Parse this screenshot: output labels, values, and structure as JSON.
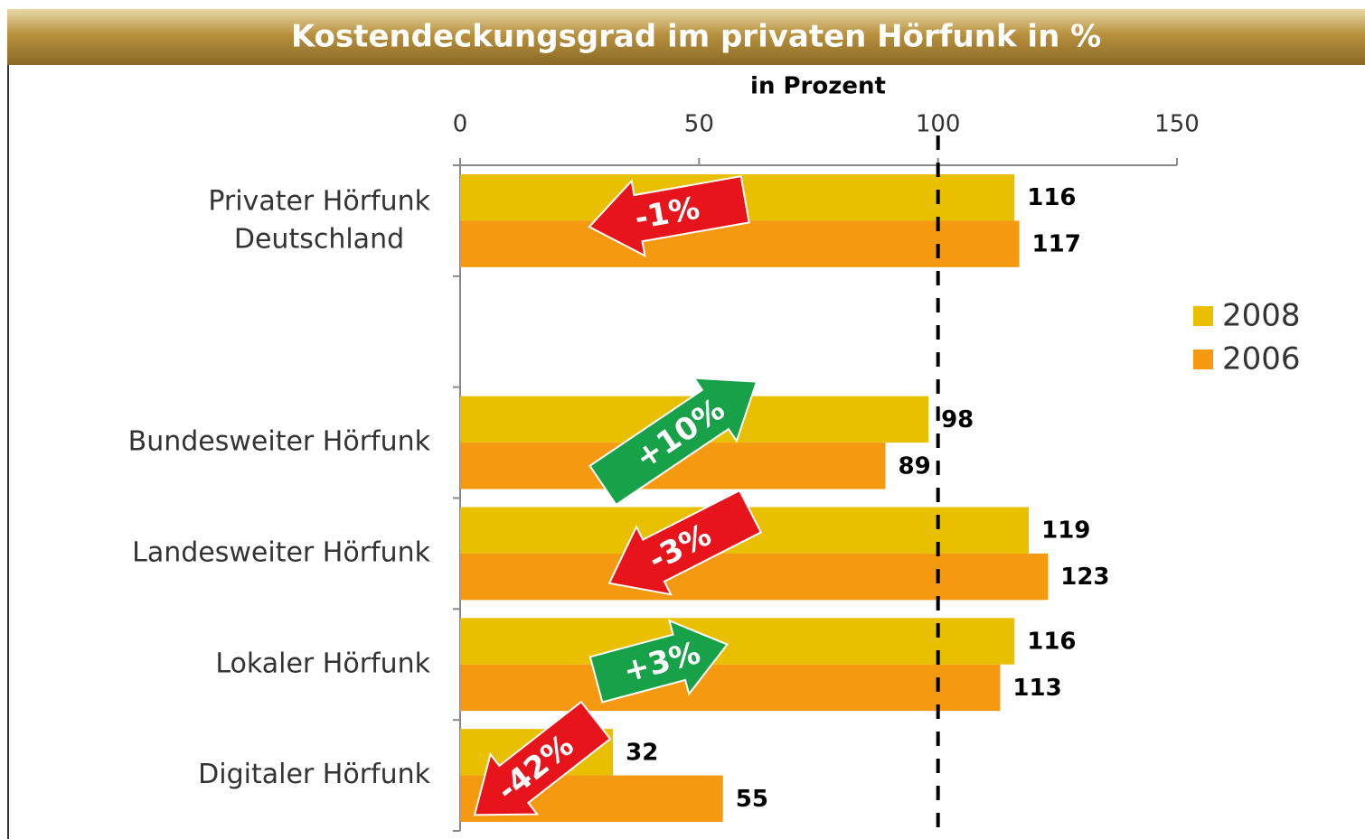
{
  "chart_data": {
    "type": "bar",
    "orientation": "horizontal",
    "title": "Kostendeckungsgrad im privaten Hörfunk in %",
    "x_label": "in Prozent",
    "categories": [
      "Privater Hörfunk Deutschland",
      null,
      "Bundesweiter Hörfunk",
      "Landesweiter Hörfunk",
      "Lokaler Hörfunk",
      "Digitaler Hörfunk"
    ],
    "series": [
      {
        "name": "2008",
        "color": "#e8c000",
        "values": [
          116,
          null,
          98,
          119,
          116,
          32
        ]
      },
      {
        "name": "2006",
        "color": "#f59a10",
        "values": [
          117,
          null,
          89,
          123,
          113,
          55
        ]
      }
    ],
    "xlim": [
      0,
      150
    ],
    "xticks": [
      0,
      50,
      100,
      150
    ],
    "reference_line": 100,
    "annotations": [
      "-1%",
      "+10%",
      "-3%",
      "+3%",
      "-42%"
    ],
    "legend": "right"
  }
}
